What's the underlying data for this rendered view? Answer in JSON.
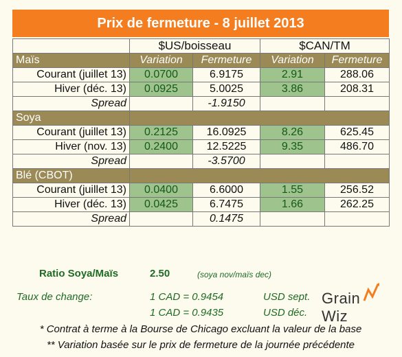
{
  "title": "Prix de fermeture - 8 juillet 2013",
  "headers": {
    "usd_group": "$US/boisseau",
    "cad_group": "$CAN/TM",
    "variation": "Variation",
    "fermeture": "Fermeture"
  },
  "sections": [
    {
      "name": "Maïs",
      "rows": [
        {
          "label": "Courant (juillet 13)",
          "usd_var": "0.0700",
          "usd_close": "6.9175",
          "cad_var": "2.91",
          "cad_close": "288.06"
        },
        {
          "label": "Hiver (déc. 13)",
          "usd_var": "0.0925",
          "usd_close": "5.0025",
          "cad_var": "3.86",
          "cad_close": "208.31"
        }
      ],
      "spread_label": "Spread",
      "spread_value": "-1.9150"
    },
    {
      "name": "Soya",
      "rows": [
        {
          "label": "Courant (juillet 13)",
          "usd_var": "0.2125",
          "usd_close": "16.0925",
          "cad_var": "8.26",
          "cad_close": "625.45"
        },
        {
          "label": "Hiver (nov. 13)",
          "usd_var": "0.2400",
          "usd_close": "12.5225",
          "cad_var": "9.35",
          "cad_close": "486.70"
        }
      ],
      "spread_label": "Spread",
      "spread_value": "-3.5700"
    },
    {
      "name": "Blé (CBOT)",
      "rows": [
        {
          "label": "Courant (juillet 13)",
          "usd_var": "0.0400",
          "usd_close": "6.6000",
          "cad_var": "1.55",
          "cad_close": "256.52"
        },
        {
          "label": "Hiver (déc. 13)",
          "usd_var": "0.0425",
          "usd_close": "6.7475",
          "cad_var": "1.66",
          "cad_close": "262.25"
        }
      ],
      "spread_label": "Spread",
      "spread_value": "0.1475"
    }
  ],
  "ratio": {
    "label": "Ratio Soya/Maïs",
    "value": "2.50",
    "note": "(soya nov/maïs dec)"
  },
  "exchange": {
    "label": "Taux de change:",
    "rate1": "1 CAD =  0.9454",
    "rate1_unit": "USD sept.",
    "rate2": "1 CAD = 0.9435",
    "rate2_unit": "USD déc."
  },
  "footnotes": [
    "* Contrat à terme à la Bourse de Chicago excluant la valeur de la base",
    "** Variation basée sur le prix de fermeture de la journée précédente"
  ],
  "logo_text": "Grain Wiz",
  "colors": {
    "title_bg": "#f47d20",
    "section_bg": "#9b8a55",
    "variation_bg": "#9ec38c",
    "green_text": "#1e6b24"
  }
}
